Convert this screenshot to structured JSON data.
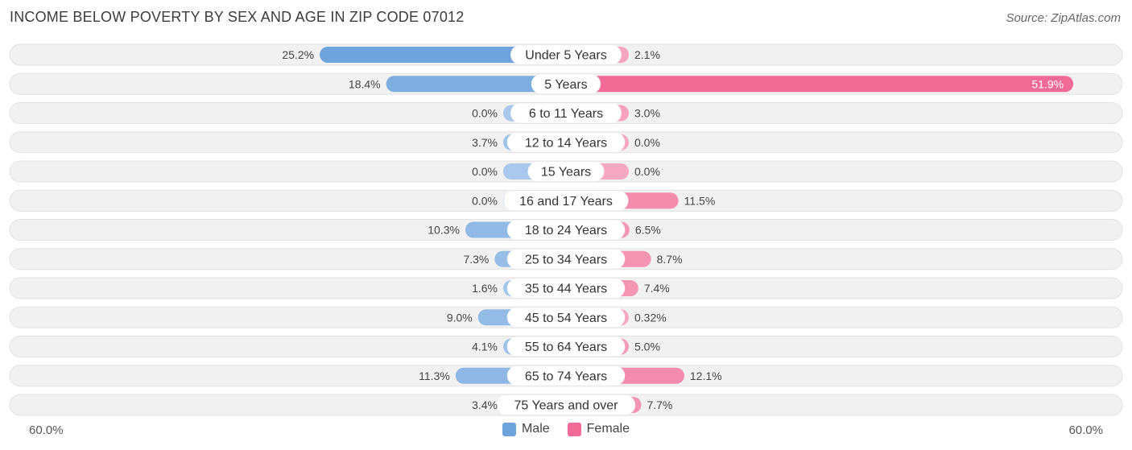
{
  "title": "INCOME BELOW POVERTY BY SEX AND AGE IN ZIP CODE 07012",
  "source": "Source: ZipAtlas.com",
  "colors": {
    "male": "#6fa3dc",
    "male_light": "#a9c8ec",
    "female": "#f26b96",
    "female_light": "#f6a8c2",
    "row_bg": "#f1f1f1"
  },
  "chart_data": {
    "type": "bar",
    "orientation": "diverging-horizontal",
    "title": "INCOME BELOW POVERTY BY SEX AND AGE IN ZIP CODE 07012",
    "categories": [
      "Under 5 Years",
      "5 Years",
      "6 to 11 Years",
      "12 to 14 Years",
      "15 Years",
      "16 and 17 Years",
      "18 to 24 Years",
      "25 to 34 Years",
      "35 to 44 Years",
      "45 to 54 Years",
      "55 to 64 Years",
      "65 to 74 Years",
      "75 Years and over"
    ],
    "series": [
      {
        "name": "Male",
        "values": [
          25.2,
          18.4,
          0.0,
          3.7,
          0.0,
          0.0,
          10.3,
          7.3,
          1.6,
          9.0,
          4.1,
          11.3,
          3.4
        ],
        "labels": [
          "25.2%",
          "18.4%",
          "0.0%",
          "3.7%",
          "0.0%",
          "0.0%",
          "10.3%",
          "7.3%",
          "1.6%",
          "9.0%",
          "4.1%",
          "11.3%",
          "3.4%"
        ]
      },
      {
        "name": "Female",
        "values": [
          2.1,
          51.9,
          3.0,
          0.0,
          0.0,
          11.5,
          6.5,
          8.7,
          7.4,
          0.32,
          5.0,
          12.1,
          7.7
        ],
        "labels": [
          "2.1%",
          "51.9%",
          "3.0%",
          "0.0%",
          "0.0%",
          "11.5%",
          "6.5%",
          "8.7%",
          "7.4%",
          "0.32%",
          "5.0%",
          "12.1%",
          "7.7%"
        ]
      }
    ],
    "xlim": [
      -60,
      60
    ],
    "axis_left_label": "60.0%",
    "axis_right_label": "60.0%",
    "legend": [
      {
        "name": "Male"
      },
      {
        "name": "Female"
      }
    ],
    "legend_position": "bottom-center"
  }
}
